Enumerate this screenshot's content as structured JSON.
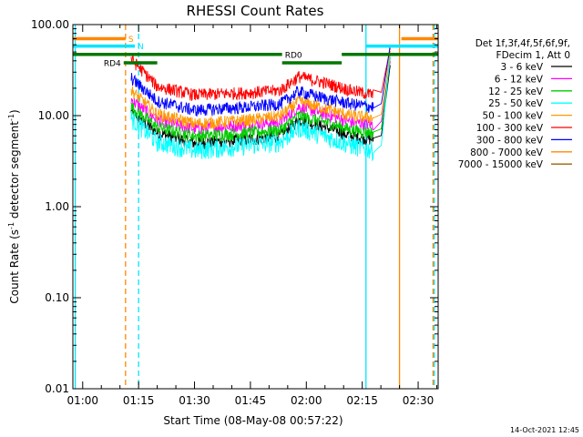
{
  "chart_data": {
    "type": "line",
    "title": "RHESSI Count Rates",
    "xlabel": "Start Time (08-May-08 00:57:22)",
    "ylabel_parts": [
      "Count Rate (s",
      "-1",
      " detector segment",
      "-1",
      ")"
    ],
    "xlim": [
      "00:57:22",
      "02:35:22"
    ],
    "ylim": [
      0.01,
      100
    ],
    "yscale": "log",
    "x_ticks": [
      "01:00",
      "01:15",
      "01:30",
      "01:45",
      "02:00",
      "02:15",
      "02:30"
    ],
    "y_ticks": [
      "0.01",
      "0.10",
      "1.00",
      "10.00",
      "100.00"
    ],
    "legend_header": [
      "Det 1f,3f,4f,5f,6f,9f,",
      "FDecim 1, Att 0"
    ],
    "series": [
      {
        "name": "3 - 6 keV",
        "color": "#000000",
        "x": [
          "01:13:00",
          "01:20:00",
          "01:30:00",
          "01:45:00",
          "01:53:00",
          "01:58:00",
          "02:05:00",
          "02:12:00",
          "02:18:00"
        ],
        "y": [
          11,
          6.5,
          5.0,
          5.5,
          6.0,
          9.0,
          7.5,
          6.0,
          5.5
        ]
      },
      {
        "name": "6 - 12 keV",
        "color": "#ff00ff",
        "x": [
          "01:13:00",
          "01:20:00",
          "01:30:00",
          "01:45:00",
          "01:53:00",
          "01:58:00",
          "02:05:00",
          "02:12:00",
          "02:18:00"
        ],
        "y": [
          15,
          9.0,
          7.2,
          8.0,
          8.5,
          12.5,
          10.5,
          8.5,
          8.0
        ]
      },
      {
        "name": "12 - 25 keV",
        "color": "#00cc00",
        "x": [
          "01:13:00",
          "01:20:00",
          "01:30:00",
          "01:45:00",
          "01:53:00",
          "01:58:00",
          "02:05:00",
          "02:12:00",
          "02:18:00"
        ],
        "y": [
          12.5,
          7.5,
          6.0,
          6.5,
          7.0,
          10.0,
          8.5,
          7.0,
          6.5
        ]
      },
      {
        "name": "25 - 50 keV",
        "color": "#00ffff",
        "x": [
          "01:13:00",
          "01:20:00",
          "01:30:00",
          "01:45:00",
          "01:53:00",
          "01:58:00",
          "02:05:00",
          "02:12:00",
          "02:18:00"
        ],
        "y": [
          9.5,
          5.2,
          4.2,
          4.8,
          5.2,
          7.5,
          6.0,
          4.8,
          4.2
        ]
      },
      {
        "name": "50 - 100 keV",
        "color": "#ff9900",
        "x": [
          "01:13:00",
          "01:20:00",
          "01:30:00",
          "01:45:00",
          "01:53:00",
          "01:58:00",
          "02:05:00",
          "02:12:00",
          "02:18:00"
        ],
        "y": [
          19,
          10.5,
          8.2,
          9.0,
          10.0,
          14.5,
          12.0,
          10.0,
          9.5
        ]
      },
      {
        "name": "100 - 300 keV",
        "color": "#ff0000",
        "x": [
          "01:13:00",
          "01:20:00",
          "01:30:00",
          "01:45:00",
          "01:53:00",
          "01:58:00",
          "02:05:00",
          "02:12:00",
          "02:18:00"
        ],
        "y": [
          42,
          21,
          17,
          18,
          19,
          27,
          23,
          19,
          17
        ]
      },
      {
        "name": "300 - 800 keV",
        "color": "#0000ff",
        "x": [
          "01:13:00",
          "01:20:00",
          "01:30:00",
          "01:45:00",
          "01:53:00",
          "01:58:00",
          "02:05:00",
          "02:12:00",
          "02:18:00"
        ],
        "y": [
          26,
          14.5,
          11.5,
          12.5,
          13.5,
          18.5,
          15.5,
          13.5,
          12.5
        ]
      },
      {
        "name": "800 - 7000 keV",
        "color": "#ff8800",
        "x": [],
        "y": []
      },
      {
        "name": "7000 - 15000 keV",
        "color": "#996600",
        "x": [],
        "y": []
      }
    ],
    "flags": [
      {
        "label": "S",
        "color": "#ff8800",
        "y": 70,
        "segments": [
          [
            "00:57:22",
            "01:11:30"
          ],
          [
            "02:25:30",
            "02:35:22"
          ]
        ]
      },
      {
        "label": "N",
        "color": "#00e5ff",
        "y": 58,
        "segments": [
          [
            "00:57:22",
            "01:14:00"
          ],
          [
            "02:16:00",
            "02:35:22"
          ]
        ]
      },
      {
        "label": "RD0",
        "color": "#007700",
        "y": 47,
        "segments": [
          [
            "00:57:22",
            "01:53:30"
          ],
          [
            "02:09:30",
            "02:35:22"
          ]
        ]
      },
      {
        "label": "RD4",
        "color": "#007700",
        "y": 38,
        "segments": [
          [
            "01:11:00",
            "01:20:00"
          ],
          [
            "01:53:30",
            "02:09:30"
          ]
        ]
      }
    ],
    "vlines": [
      {
        "x": "00:58:00",
        "color": "#00e5ff",
        "dash": false
      },
      {
        "x": "01:11:30",
        "color": "#ff8800",
        "dash": true
      },
      {
        "x": "01:15:00",
        "color": "#00e5ff",
        "dash": true
      },
      {
        "x": "02:16:00",
        "color": "#00e5ff",
        "dash": false
      },
      {
        "x": "02:25:00",
        "color": "#ff8800",
        "dash": false
      },
      {
        "x": "02:34:00",
        "color": "#ff8800",
        "dash": true
      },
      {
        "x": "02:34:20",
        "color": "#00e5ff",
        "dash": true
      }
    ],
    "spike": {
      "x_start": "02:20:00",
      "x_peak": "02:22:30",
      "y_peak": 65
    }
  },
  "footer": {
    "timestamp": "14-Oct-2021 12:45"
  }
}
